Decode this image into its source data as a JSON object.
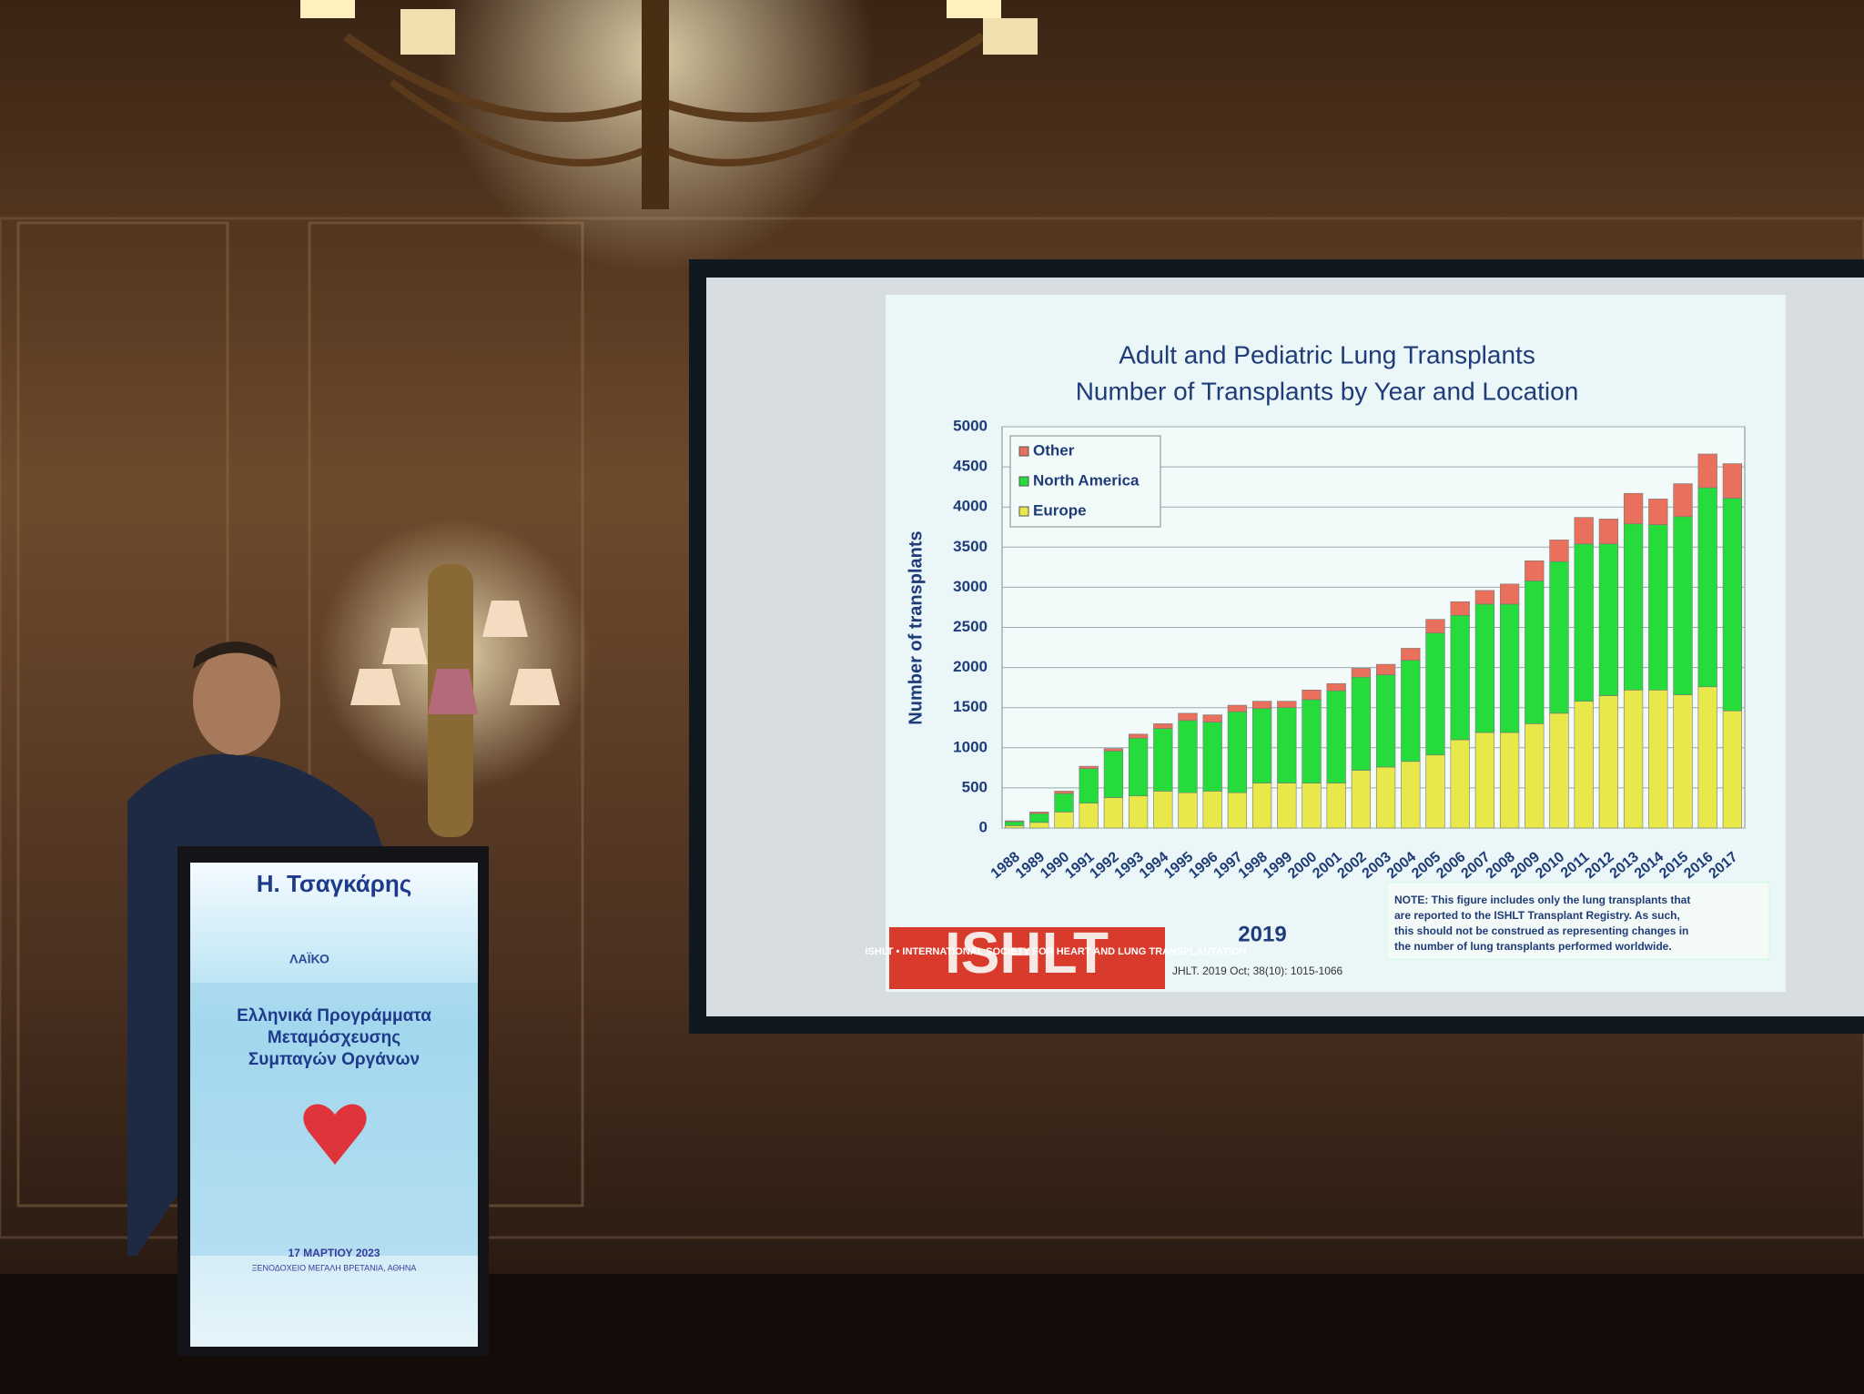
{
  "chart_data": {
    "type": "stacked-bar",
    "title": "Adult and Pediatric Lung Transplants",
    "subtitle": "Number of Transplants by Year and Location",
    "y_label": "Number of transplants",
    "categories": [
      "1988",
      "1989",
      "1990",
      "1991",
      "1992",
      "1993",
      "1994",
      "1995",
      "1996",
      "1997",
      "1998",
      "1999",
      "2000",
      "2001",
      "2002",
      "2003",
      "2004",
      "2005",
      "2006",
      "2007",
      "2008",
      "2009",
      "2010",
      "2011",
      "2012",
      "2013",
      "2014",
      "2015",
      "2016",
      "2017"
    ],
    "series": [
      {
        "name": "Europe",
        "color": "#e8e84a",
        "values": [
          30,
          70,
          200,
          310,
          380,
          400,
          460,
          440,
          460,
          440,
          560,
          560,
          560,
          560,
          720,
          760,
          830,
          910,
          1100,
          1190,
          1190,
          1300,
          1430,
          1580,
          1650,
          1720,
          1720,
          1660,
          1760,
          1460
        ]
      },
      {
        "name": "North America",
        "color": "#26dc3c",
        "values": [
          50,
          110,
          230,
          430,
          580,
          720,
          780,
          900,
          860,
          1010,
          930,
          940,
          1040,
          1150,
          1160,
          1150,
          1260,
          1520,
          1550,
          1600,
          1600,
          1780,
          1890,
          1960,
          1890,
          2070,
          2060,
          2220,
          2480,
          2650
        ]
      },
      {
        "name": "Other",
        "color": "#e8705c",
        "values": [
          10,
          20,
          30,
          30,
          30,
          50,
          60,
          90,
          90,
          80,
          90,
          80,
          120,
          90,
          110,
          130,
          150,
          170,
          170,
          170,
          250,
          250,
          270,
          330,
          310,
          380,
          320,
          410,
          420,
          430
        ]
      }
    ],
    "ylim": [
      0,
      5000
    ],
    "yticks": [
      0,
      500,
      1000,
      1500,
      2000,
      2500,
      3000,
      3500,
      4000,
      4500,
      5000
    ],
    "grid": true,
    "legend": "top-left",
    "note": [
      "NOTE: This figure includes only the lung transplants that",
      "are reported to the ISHLT Transplant Registry.  As such,",
      "this should not be construed as representing changes in",
      "the number of lung transplants performed worldwide."
    ],
    "footer": {
      "logo": "ISHLT",
      "society": "ISHLT • INTERNATIONAL SOCIETY FOR HEART AND LUNG TRANSPLANTATION",
      "year": "2019",
      "citation": "JHLT. 2019 Oct; 38(10): 1015-1066"
    }
  },
  "podium": {
    "speaker": "Η. Τσαγκάρης",
    "logo": "ΛΑΪΚΟ",
    "event": [
      "Ελληνικά Προγράμματα",
      "Μεταμόσχευσης",
      "Συμπαγών Οργάνων"
    ],
    "date": "17 ΜΑΡΤΙΟΥ 2023",
    "venue": "ΞΕΝΟΔΟΧΕΙΟ ΜΕΓΑΛΗ ΒΡΕΤΑΝΙΑ, ΑΘΗΝΑ"
  }
}
